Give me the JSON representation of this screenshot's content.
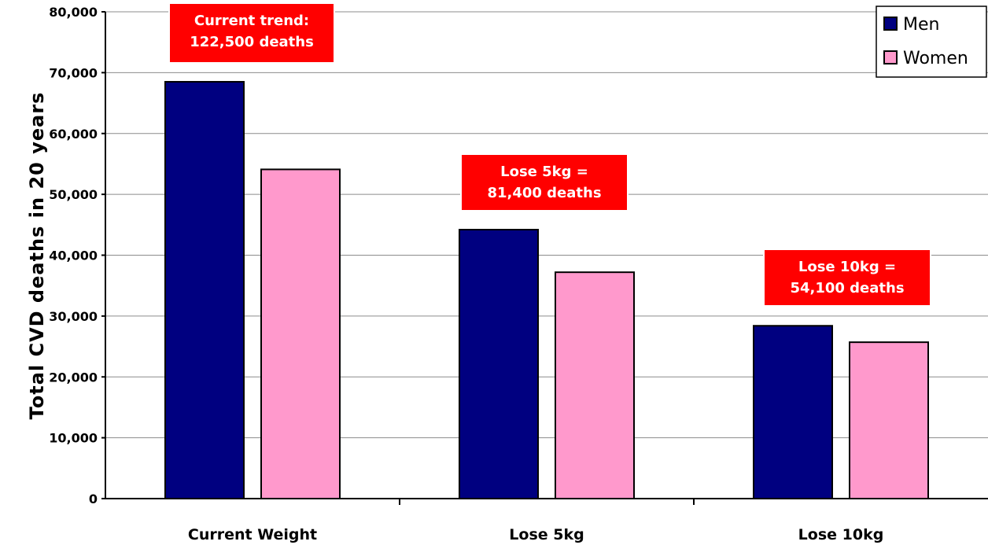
{
  "chart_data": {
    "type": "bar",
    "categories": [
      "Current Weight",
      "Lose 5kg",
      "Lose 10kg"
    ],
    "series": [
      {
        "name": "Men",
        "values": [
          68500,
          44200,
          28400
        ],
        "color": "#000080"
      },
      {
        "name": "Women",
        "values": [
          54100,
          37200,
          25700
        ],
        "color": "#ff99cc"
      }
    ],
    "ylabel": "Total CVD deaths in 20 years",
    "xlabel": "",
    "ylim": [
      0,
      80000
    ],
    "yticks": [
      0,
      10000,
      20000,
      30000,
      40000,
      50000,
      60000,
      70000,
      80000
    ],
    "ytick_labels": [
      "0",
      "10,000",
      "20,000",
      "30,000",
      "40,000",
      "50,000",
      "60,000",
      "70,000",
      "80,000"
    ],
    "grid": true,
    "legend_position": "top-right",
    "annotations": [
      {
        "category": "Current Weight",
        "lines": [
          "Current trend:",
          "122,500 deaths"
        ]
      },
      {
        "category": "Lose 5kg",
        "lines": [
          "Lose 5kg =",
          "81,400 deaths"
        ]
      },
      {
        "category": "Lose 10kg",
        "lines": [
          "Lose 10kg =",
          "54,100 deaths"
        ]
      }
    ],
    "annotation_color": "#ff0000"
  }
}
